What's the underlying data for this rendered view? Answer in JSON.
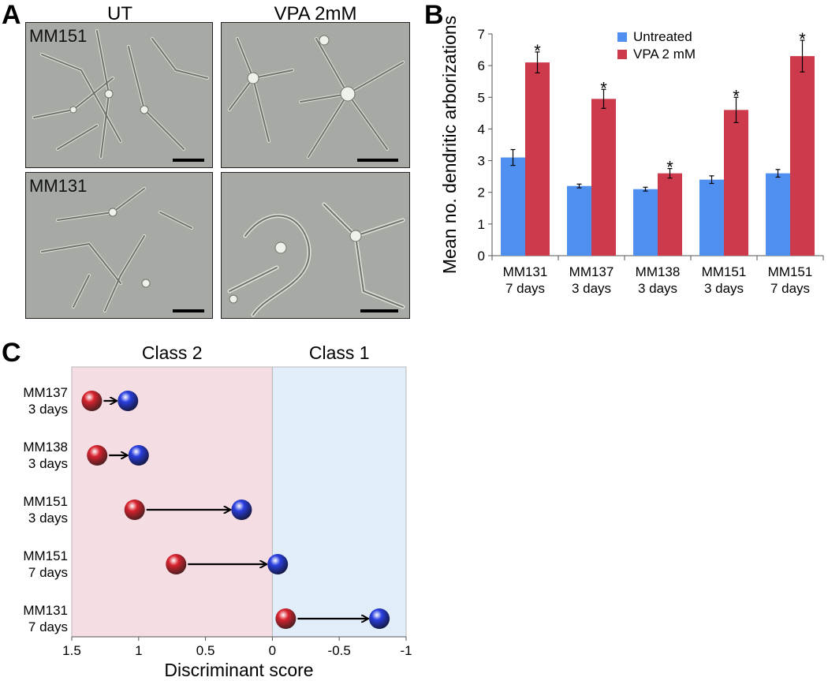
{
  "panel_a": {
    "label": "A",
    "col_titles": [
      "UT",
      "VPA 2mM"
    ],
    "row_labels": [
      "MM151",
      "MM131"
    ],
    "colors": {
      "image_bg": "#a7aaa4",
      "cell": "#6e736c",
      "halo": "#e9ede4",
      "scalebar": "#000000"
    }
  },
  "panel_b": {
    "label": "B",
    "chart_data": {
      "type": "bar",
      "title": "",
      "xlabel": "",
      "ylabel": "Mean no. dendritic arborizations",
      "ylim": [
        0,
        7
      ],
      "yticks": [
        "0",
        "1",
        "2",
        "3",
        "4",
        "5",
        "6",
        "7"
      ],
      "categories": [
        {
          "line1": "MM131",
          "line2": "7 days"
        },
        {
          "line1": "MM137",
          "line2": "3 days"
        },
        {
          "line1": "MM138",
          "line2": "3 days"
        },
        {
          "line1": "MM151",
          "line2": "3 days"
        },
        {
          "line1": "MM151",
          "line2": "7 days"
        }
      ],
      "series": [
        {
          "name": "Untreated",
          "color": "#4f8ff0",
          "values": [
            3.1,
            2.2,
            2.1,
            2.4,
            2.6
          ],
          "errors": [
            0.25,
            0.06,
            0.06,
            0.12,
            0.12
          ]
        },
        {
          "name": "VPA 2 mM",
          "color": "#cc3a4b",
          "values": [
            6.1,
            4.95,
            2.6,
            4.6,
            6.3
          ],
          "errors": [
            0.33,
            0.3,
            0.15,
            0.4,
            0.5
          ]
        }
      ],
      "significance_marker": "*",
      "legend_position": "top-center"
    }
  },
  "panel_c": {
    "label": "C",
    "chart_data": {
      "type": "scatter",
      "title": "",
      "xlabel": "Discriminant score",
      "xlim": [
        1.5,
        -1
      ],
      "xticks": [
        {
          "value": 1.5,
          "label": "1.5"
        },
        {
          "value": 1,
          "label": "1"
        },
        {
          "value": 0.5,
          "label": "0.5"
        },
        {
          "value": 0,
          "label": "0"
        },
        {
          "value": -0.5,
          "label": "-0.5"
        },
        {
          "value": -1,
          "label": "-1"
        }
      ],
      "regions": [
        {
          "name": "Class 2",
          "from": 1.5,
          "to": 0,
          "color": "#f5dde4"
        },
        {
          "name": "Class 1",
          "from": 0,
          "to": -1,
          "color": "#e1eefa"
        }
      ],
      "series_colors": {
        "untreated": "#d8232f",
        "vpa": "#2a3fe0"
      },
      "rows": [
        {
          "line1": "MM137",
          "line2": "3 days",
          "untreated": 1.35,
          "vpa": 1.08
        },
        {
          "line1": "MM138",
          "line2": "3 days",
          "untreated": 1.31,
          "vpa": 1.0
        },
        {
          "line1": "MM151",
          "line2": "3 days",
          "untreated": 1.03,
          "vpa": 0.23
        },
        {
          "line1": "MM151",
          "line2": "7 days",
          "untreated": 0.72,
          "vpa": -0.04
        },
        {
          "line1": "MM131",
          "line2": "7 days",
          "untreated": -0.1,
          "vpa": -0.8
        }
      ]
    }
  }
}
